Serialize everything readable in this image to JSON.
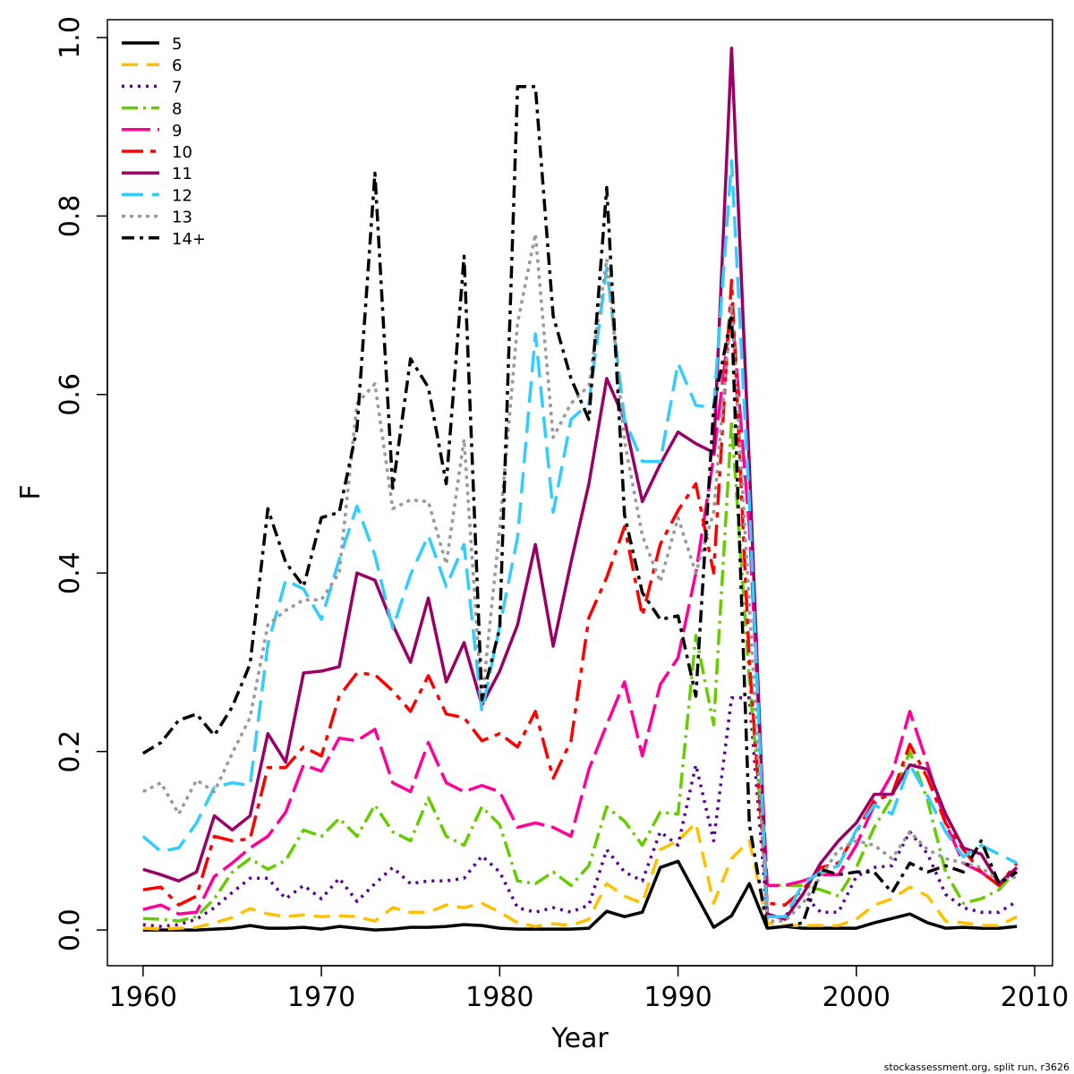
{
  "chart_data": {
    "type": "line",
    "xlabel": "Year",
    "ylabel": "F",
    "xlim": [
      1958,
      2011
    ],
    "ylim": [
      -0.04,
      1.02
    ],
    "xticks": [
      "1960",
      "1970",
      "1980",
      "1990",
      "2000",
      "2010"
    ],
    "yticks": [
      "0.0",
      "0.2",
      "0.4",
      "0.6",
      "0.8",
      "1.0"
    ],
    "legend_position": "top-left",
    "grid": false,
    "x": [
      1960,
      1961,
      1962,
      1963,
      1964,
      1965,
      1966,
      1967,
      1968,
      1969,
      1970,
      1971,
      1972,
      1973,
      1974,
      1975,
      1976,
      1977,
      1978,
      1979,
      1980,
      1981,
      1982,
      1983,
      1984,
      1985,
      1986,
      1987,
      1988,
      1989,
      1990,
      1991,
      1992,
      1993,
      1994,
      1995,
      1996,
      1997,
      1998,
      1999,
      2000,
      2001,
      2002,
      2003,
      2004,
      2005,
      2006,
      2007,
      2008,
      2009
    ],
    "series": [
      {
        "name": "5",
        "color": "#000000",
        "dash": "",
        "values": [
          0.0,
          0.0,
          0.0,
          0.0,
          0.001,
          0.002,
          0.005,
          0.002,
          0.002,
          0.003,
          0.001,
          0.004,
          0.002,
          0.0,
          0.001,
          0.003,
          0.003,
          0.004,
          0.006,
          0.005,
          0.002,
          0.001,
          0.001,
          0.001,
          0.001,
          0.002,
          0.021,
          0.015,
          0.02,
          0.07,
          0.077,
          0.04,
          0.003,
          0.016,
          0.052,
          0.002,
          0.004,
          0.002,
          0.002,
          0.002,
          0.002,
          0.008,
          0.013,
          0.018,
          0.008,
          0.002,
          0.003,
          0.002,
          0.002,
          0.004
        ]
      },
      {
        "name": "6",
        "color": "#FFC000",
        "dash": "18,10",
        "values": [
          0.002,
          0.001,
          0.002,
          0.003,
          0.008,
          0.014,
          0.024,
          0.018,
          0.015,
          0.017,
          0.015,
          0.016,
          0.015,
          0.01,
          0.025,
          0.02,
          0.02,
          0.028,
          0.025,
          0.03,
          0.02,
          0.008,
          0.004,
          0.007,
          0.005,
          0.012,
          0.052,
          0.038,
          0.03,
          0.09,
          0.1,
          0.12,
          0.03,
          0.08,
          0.1,
          0.008,
          0.005,
          0.005,
          0.005,
          0.005,
          0.012,
          0.028,
          0.035,
          0.048,
          0.038,
          0.01,
          0.008,
          0.005,
          0.005,
          0.015
        ]
      },
      {
        "name": "7",
        "color": "#5B0099",
        "dash": "3,6",
        "values": [
          0.006,
          0.004,
          0.006,
          0.012,
          0.025,
          0.042,
          0.058,
          0.058,
          0.035,
          0.05,
          0.035,
          0.058,
          0.032,
          0.052,
          0.07,
          0.052,
          0.055,
          0.055,
          0.058,
          0.083,
          0.065,
          0.025,
          0.02,
          0.025,
          0.02,
          0.028,
          0.09,
          0.065,
          0.055,
          0.11,
          0.095,
          0.185,
          0.1,
          0.26,
          0.26,
          0.015,
          0.015,
          0.04,
          0.02,
          0.02,
          0.06,
          0.07,
          0.072,
          0.11,
          0.085,
          0.04,
          0.025,
          0.02,
          0.02,
          0.032
        ]
      },
      {
        "name": "8",
        "color": "#66CC00",
        "dash": "18,6,3,6",
        "values": [
          0.013,
          0.012,
          0.01,
          0.015,
          0.035,
          0.065,
          0.08,
          0.068,
          0.078,
          0.112,
          0.105,
          0.125,
          0.105,
          0.14,
          0.11,
          0.1,
          0.148,
          0.105,
          0.095,
          0.138,
          0.118,
          0.055,
          0.052,
          0.065,
          0.05,
          0.072,
          0.138,
          0.122,
          0.095,
          0.132,
          0.13,
          0.33,
          0.23,
          0.57,
          0.28,
          0.05,
          0.05,
          0.05,
          0.045,
          0.038,
          0.07,
          0.115,
          0.148,
          0.2,
          0.145,
          0.065,
          0.03,
          0.035,
          0.045,
          0.068
        ]
      },
      {
        "name": "9",
        "color": "#FF0099",
        "dash": "32,8",
        "values": [
          0.023,
          0.028,
          0.018,
          0.02,
          0.06,
          0.075,
          0.092,
          0.105,
          0.132,
          0.185,
          0.178,
          0.215,
          0.212,
          0.225,
          0.165,
          0.155,
          0.21,
          0.165,
          0.155,
          0.162,
          0.155,
          0.115,
          0.12,
          0.115,
          0.105,
          0.18,
          0.23,
          0.278,
          0.195,
          0.275,
          0.305,
          0.4,
          0.53,
          0.7,
          0.45,
          0.05,
          0.05,
          0.055,
          0.062,
          0.062,
          0.095,
          0.14,
          0.175,
          0.245,
          0.185,
          0.12,
          0.075,
          0.065,
          0.05,
          0.07
        ]
      },
      {
        "name": "10",
        "color": "#FF0000",
        "dash": "24,8,6,8",
        "values": [
          0.045,
          0.048,
          0.028,
          0.038,
          0.105,
          0.1,
          0.102,
          0.182,
          0.182,
          0.205,
          0.195,
          0.262,
          0.288,
          0.286,
          0.268,
          0.245,
          0.285,
          0.242,
          0.238,
          0.212,
          0.22,
          0.205,
          0.245,
          0.17,
          0.212,
          0.35,
          0.395,
          0.452,
          0.352,
          0.432,
          0.47,
          0.5,
          0.4,
          0.728,
          0.3,
          0.03,
          0.028,
          0.045,
          0.07,
          0.075,
          0.11,
          0.145,
          0.152,
          0.208,
          0.17,
          0.12,
          0.09,
          0.065,
          0.05,
          0.075
        ]
      },
      {
        "name": "11",
        "color": "#990066",
        "dash": "",
        "values": [
          0.068,
          0.062,
          0.055,
          0.065,
          0.128,
          0.112,
          0.128,
          0.22,
          0.188,
          0.288,
          0.29,
          0.295,
          0.4,
          0.392,
          0.342,
          0.3,
          0.372,
          0.278,
          0.322,
          0.252,
          0.29,
          0.342,
          0.432,
          0.318,
          0.412,
          0.5,
          0.618,
          0.572,
          0.48,
          0.522,
          0.558,
          0.545,
          0.535,
          0.988,
          0.52,
          0.018,
          0.012,
          0.04,
          0.075,
          0.1,
          0.12,
          0.152,
          0.152,
          0.185,
          0.18,
          0.13,
          0.092,
          0.085,
          0.052,
          0.07
        ]
      },
      {
        "name": "12",
        "color": "#33CCFF",
        "dash": "24,10",
        "values": [
          0.105,
          0.088,
          0.092,
          0.12,
          0.16,
          0.165,
          0.162,
          0.32,
          0.392,
          0.382,
          0.348,
          0.415,
          0.475,
          0.42,
          0.338,
          0.398,
          0.442,
          0.385,
          0.432,
          0.245,
          0.34,
          0.44,
          0.668,
          0.468,
          0.572,
          0.59,
          0.742,
          0.572,
          0.525,
          0.525,
          0.635,
          0.588,
          0.585,
          0.862,
          0.478,
          0.015,
          0.015,
          0.052,
          0.065,
          0.072,
          0.112,
          0.14,
          0.13,
          0.185,
          0.15,
          0.11,
          0.082,
          0.095,
          0.085,
          0.075
        ]
      },
      {
        "name": "13",
        "color": "#999999",
        "dash": "4,5",
        "values": [
          0.155,
          0.165,
          0.13,
          0.168,
          0.155,
          0.198,
          0.238,
          0.342,
          0.358,
          0.37,
          0.37,
          0.4,
          0.59,
          0.612,
          0.472,
          0.482,
          0.48,
          0.41,
          0.55,
          0.255,
          0.45,
          0.68,
          0.78,
          0.552,
          0.59,
          0.61,
          0.752,
          0.548,
          0.442,
          0.39,
          0.462,
          0.4,
          0.468,
          0.7,
          0.365,
          0.01,
          0.01,
          0.03,
          0.06,
          0.09,
          0.1,
          0.095,
          0.08,
          0.11,
          0.09,
          0.08,
          0.075,
          0.07,
          0.055,
          0.06
        ]
      },
      {
        "name": "14+",
        "color": "#000000",
        "dash": "14,6,4,6",
        "values": [
          0.198,
          0.21,
          0.235,
          0.242,
          0.218,
          0.25,
          0.298,
          0.472,
          0.412,
          0.385,
          0.462,
          0.468,
          0.562,
          0.848,
          0.495,
          0.64,
          0.608,
          0.5,
          0.755,
          0.258,
          0.338,
          0.945,
          0.945,
          0.688,
          0.618,
          0.572,
          0.832,
          0.465,
          0.378,
          0.348,
          0.352,
          0.262,
          0.585,
          0.69,
          0.118,
          0.002,
          0.004,
          0.008,
          0.068,
          0.062,
          0.065,
          0.065,
          0.042,
          0.075,
          0.065,
          0.072,
          0.065,
          0.1,
          0.052,
          0.065
        ]
      }
    ]
  },
  "footer": "stockassessment.org, split  run, r3626"
}
